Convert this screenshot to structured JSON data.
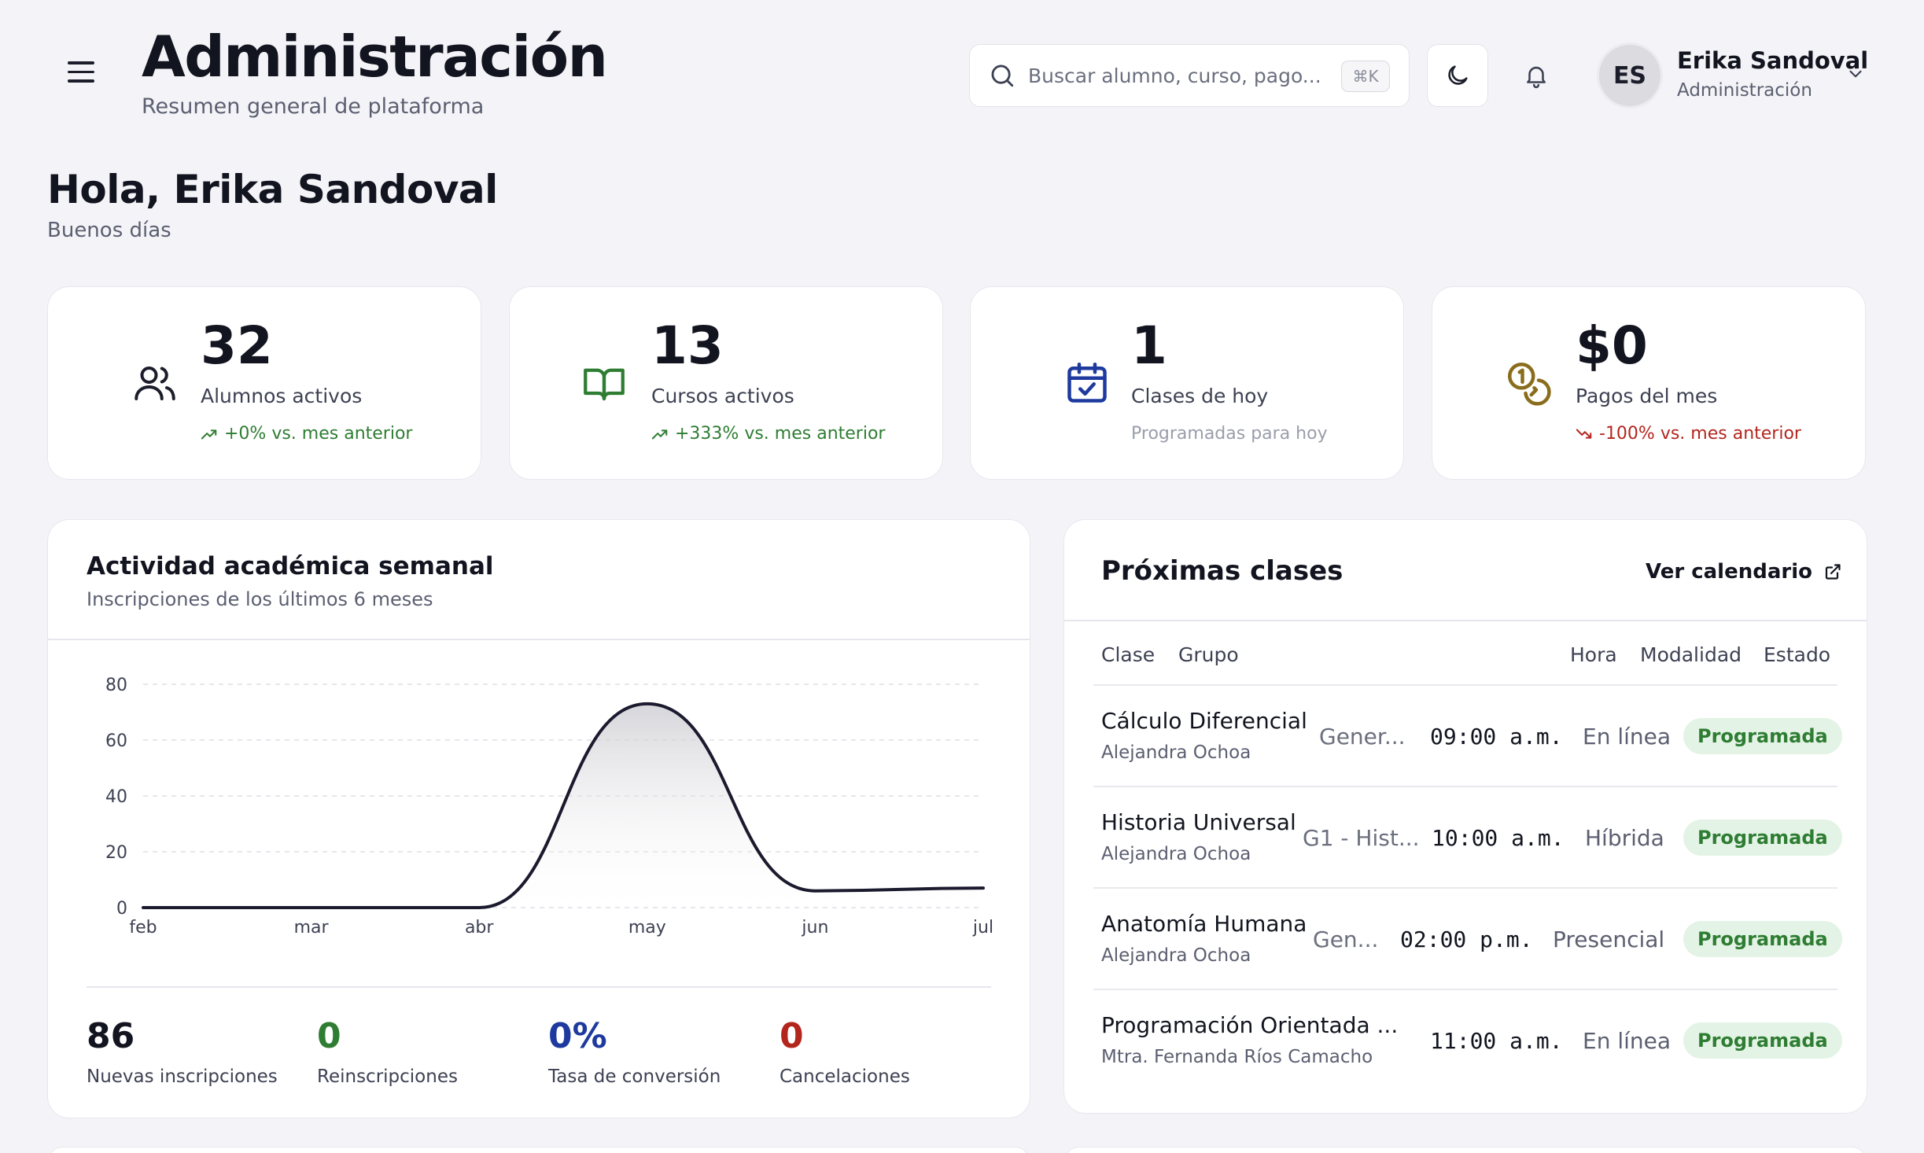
{
  "header": {
    "title": "Administración",
    "subtitle": "Resumen general de plataforma",
    "search_placeholder": "Buscar alumno, curso, pago...",
    "search_shortcut": "⌘K",
    "user": {
      "initials": "ES",
      "name": "Erika Sandoval",
      "role": "Administración"
    }
  },
  "greeting": {
    "title": "Hola, Erika Sandoval",
    "subtitle": "Buenos días"
  },
  "stats": [
    {
      "value": "32",
      "label": "Alumnos activos",
      "trend": "+0% vs. mes anterior",
      "trend_dir": "up",
      "icon": "users-icon",
      "color": "#1b1d2a"
    },
    {
      "value": "13",
      "label": "Cursos activos",
      "trend": "+333% vs. mes anterior",
      "trend_dir": "up",
      "icon": "book-icon",
      "color": "#2e7d32"
    },
    {
      "value": "1",
      "label": "Clases de hoy",
      "trend": "Programadas para hoy",
      "trend_dir": "none",
      "icon": "calendar-check-icon",
      "color": "#1e3a9e"
    },
    {
      "value": "$0",
      "label": "Pagos del mes",
      "trend": "-100% vs. mes anterior",
      "trend_dir": "down",
      "icon": "coins-icon",
      "color": "#8a6d1c"
    }
  ],
  "activity": {
    "title": "Actividad académica semanal",
    "subtitle": "Inscripciones de los últimos 6 meses",
    "kpis": [
      {
        "value": "86",
        "label": "Nuevas inscripciones",
        "color": "#12141f"
      },
      {
        "value": "0",
        "label": "Reinscripciones",
        "color": "#2e7d32"
      },
      {
        "value": "0%",
        "label": "Tasa de conversión",
        "color": "#1e3a9e"
      },
      {
        "value": "0",
        "label": "Cancelaciones",
        "color": "#b3261e"
      }
    ]
  },
  "chart_data": {
    "type": "area",
    "x": [
      "feb",
      "mar",
      "abr",
      "may",
      "jun",
      "jul"
    ],
    "values": [
      0,
      0,
      0,
      73,
      6,
      7
    ],
    "ylim": [
      0,
      80
    ],
    "yticks": [
      0,
      20,
      40,
      60,
      80
    ],
    "grid": true,
    "line_color": "#1b1a2e"
  },
  "classes": {
    "title": "Próximas clases",
    "calendar_link": "Ver calendario",
    "columns": [
      "Clase",
      "Grupo",
      "Hora",
      "Modalidad",
      "Estado"
    ],
    "rows": [
      {
        "name": "Cálculo Diferencial",
        "teacher": "Alejandra Ochoa",
        "group": "Gener...",
        "time": "09:00 a.m.",
        "mode": "En línea",
        "status": "Programada"
      },
      {
        "name": "Historia Universal",
        "teacher": "Alejandra Ochoa",
        "group": "G1 - Hist...",
        "time": "10:00 a.m.",
        "mode": "Híbrida",
        "status": "Programada"
      },
      {
        "name": "Anatomía Humana",
        "teacher": "Alejandra Ochoa",
        "group": "Gen...",
        "time": "02:00 p.m.",
        "mode": "Presencial",
        "status": "Programada"
      },
      {
        "name": "Programación Orientada ...",
        "teacher": "Mtra. Fernanda Ríos Camacho",
        "group": "",
        "time": "11:00 a.m.",
        "mode": "En línea",
        "status": "Programada"
      }
    ]
  }
}
